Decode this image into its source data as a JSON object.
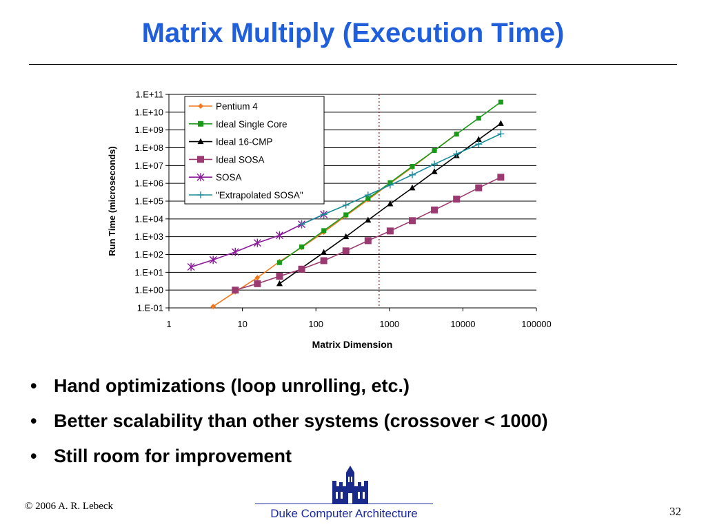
{
  "slide": {
    "title": "Matrix Multiply (Execution Time)",
    "bullets": [
      "Hand optimizations (loop unrolling, etc.)",
      "Better scalability than other systems (crossover < 1000)",
      "Still room for improvement"
    ],
    "copyright": "© 2006 A. R. Lebeck",
    "footer": "Duke Computer Architecture",
    "page_number": "32",
    "logo_icon": "duke-chapel-icon",
    "bullet_glyph": "•"
  },
  "chart_data": {
    "type": "line",
    "title": "",
    "xlabel": "Matrix Dimension",
    "ylabel": "Run Time (microseconds)",
    "x_scale": "log",
    "y_scale": "log",
    "xlim": [
      1,
      100000
    ],
    "ylim": [
      0.1,
      100000000000
    ],
    "x_ticks": [
      "1",
      "10",
      "100",
      "1000",
      "10000",
      "100000"
    ],
    "y_ticks": [
      "1.E-01",
      "1.E+00",
      "1.E+01",
      "1.E+02",
      "1.E+03",
      "1.E+04",
      "1.E+05",
      "1.E+06",
      "1.E+07",
      "1.E+08",
      "1.E+09",
      "1.E+10",
      "1.E+11"
    ],
    "grid": "horizontal",
    "legend_position": "top-left",
    "crossover_line_x": 724,
    "series": [
      {
        "name": "Pentium 4",
        "color": "#f07820",
        "marker": "diamond",
        "x": [
          4,
          8,
          16,
          32,
          64,
          128,
          256,
          512,
          1024,
          2048,
          4096,
          8192
        ],
        "y": [
          0.12,
          0.8,
          5,
          40,
          250,
          1800,
          15000,
          120000,
          1000000,
          8000000,
          70000000,
          600000000
        ]
      },
      {
        "name": "Ideal Single Core",
        "color": "#1a9a1a",
        "marker": "square",
        "x": [
          32,
          64,
          128,
          256,
          512,
          1024,
          2048,
          4096,
          8192,
          16384,
          32768
        ],
        "y": [
          35,
          270,
          2200,
          17000,
          140000,
          1100000,
          9000000,
          70000000,
          580000000,
          4600000000,
          37000000000
        ]
      },
      {
        "name": "Ideal 16-CMP",
        "color": "#000000",
        "marker": "triangle",
        "x": [
          32,
          128,
          256,
          512,
          1024,
          2048,
          4096,
          8192,
          16384,
          32768
        ],
        "y": [
          2.3,
          130,
          1000,
          8500,
          70000,
          550000,
          4500000,
          36000000,
          290000000,
          2300000000
        ]
      },
      {
        "name": "Ideal SOSA",
        "color": "#9a3a70",
        "marker": "square",
        "x": [
          8,
          16,
          32,
          64,
          128,
          256,
          512,
          1024,
          2048,
          4096,
          8192,
          16384,
          32768
        ],
        "y": [
          1,
          2.3,
          6,
          15,
          45,
          160,
          600,
          2100,
          8000,
          32000,
          130000,
          560000,
          2200000
        ]
      },
      {
        "name": "SOSA",
        "color": "#8a1a9a",
        "marker": "asterisk",
        "x": [
          2,
          4,
          8,
          16,
          32,
          64,
          128
        ],
        "y": [
          20,
          50,
          140,
          450,
          1200,
          5000,
          18000
        ]
      },
      {
        "name": "\"Extrapolated SOSA\"",
        "color": "#1a8a9a",
        "marker": "plus",
        "x": [
          64,
          128,
          256,
          512,
          1024,
          2048,
          4096,
          8192,
          16384,
          32768
        ],
        "y": [
          5000,
          18000,
          60000,
          220000,
          800000,
          3000000,
          12000000,
          45000000,
          160000000,
          600000000
        ]
      }
    ]
  }
}
